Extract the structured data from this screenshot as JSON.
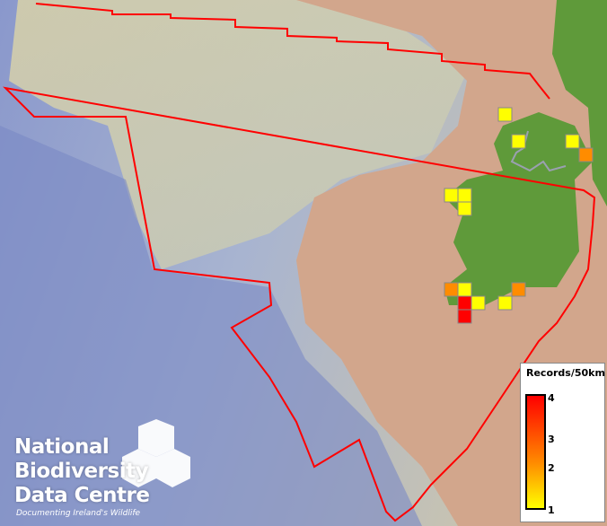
{
  "legend": {
    "title": "Records/50km",
    "ticks": [
      "4",
      "3",
      "2",
      "1"
    ],
    "range": [
      1,
      4
    ],
    "colors": {
      "low": "#ffff00",
      "mid": "#ff8c00",
      "high": "#ff0000"
    }
  },
  "records_grid": {
    "values": [
      1,
      1,
      1,
      2,
      1,
      1,
      1,
      2,
      1,
      4,
      1,
      4,
      1,
      2
    ],
    "cell_size_km": 50
  },
  "logo": {
    "line1": "National",
    "line2": "Biodiversity",
    "line3": "Data Centre",
    "tagline": "Documenting Ireland's Wildlife"
  },
  "colors": {
    "boundary": "#ff0000",
    "land": "#5f9a3a",
    "shelf": "#d2a68c",
    "deep_ocean": "#7f8fc8",
    "border": "#9aa0b0"
  }
}
